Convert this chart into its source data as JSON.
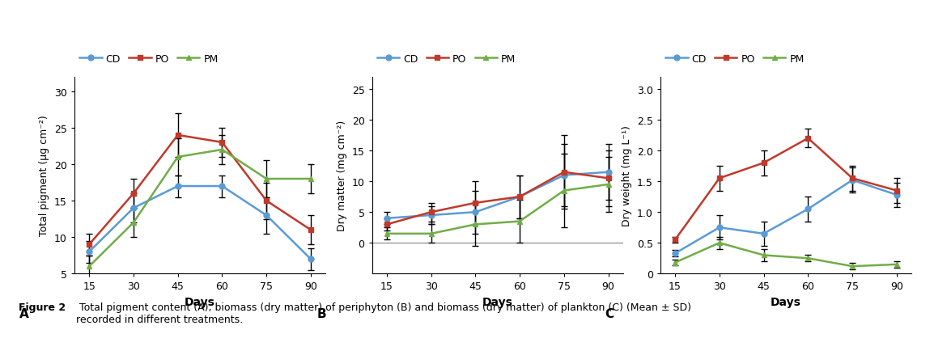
{
  "days": [
    15,
    30,
    45,
    60,
    75,
    90
  ],
  "panel_A": {
    "ylabel": "Total pigment (μg cm⁻²)",
    "ylim": [
      5,
      32
    ],
    "yticks": [
      5,
      10,
      15,
      20,
      25,
      30
    ],
    "CD": {
      "y": [
        8,
        14,
        17,
        17,
        13,
        7
      ],
      "yerr": [
        1.5,
        2.0,
        1.5,
        1.5,
        2.5,
        1.5
      ]
    },
    "PO": {
      "y": [
        9,
        16,
        24,
        23,
        15,
        11
      ],
      "yerr": [
        1.5,
        2.0,
        3.0,
        2.0,
        2.5,
        2.0
      ]
    },
    "PM": {
      "y": [
        6,
        12,
        21,
        22,
        18,
        18
      ],
      "yerr": [
        1.5,
        2.0,
        2.5,
        2.0,
        2.5,
        2.0
      ]
    },
    "label": "A"
  },
  "panel_B": {
    "ylabel": "Dry matter (mg cm⁻²)",
    "ylim": [
      -5,
      27
    ],
    "yticks": [
      0,
      5,
      10,
      15,
      20,
      25
    ],
    "CD": {
      "y": [
        4.0,
        4.5,
        5.0,
        7.5,
        11.0,
        11.5
      ],
      "yerr": [
        1.0,
        1.5,
        3.5,
        3.5,
        5.0,
        4.5
      ]
    },
    "PO": {
      "y": [
        3.0,
        5.0,
        6.5,
        7.5,
        11.5,
        10.5
      ],
      "yerr": [
        1.0,
        1.5,
        3.5,
        3.5,
        6.0,
        4.5
      ]
    },
    "PM": {
      "y": [
        1.5,
        1.5,
        3.0,
        3.5,
        8.5,
        9.5
      ],
      "yerr": [
        1.0,
        1.5,
        3.5,
        3.5,
        6.0,
        4.5
      ]
    },
    "label": "B"
  },
  "panel_C": {
    "ylabel": "Dry weight (mg L⁻¹)",
    "ylim": [
      0,
      3.2
    ],
    "yticks": [
      0,
      0.5,
      1.0,
      1.5,
      2.0,
      2.5,
      3.0
    ],
    "CD": {
      "y": [
        0.33,
        0.75,
        0.65,
        1.05,
        1.52,
        1.28
      ],
      "yerr": [
        0.05,
        0.2,
        0.2,
        0.2,
        0.2,
        0.2
      ]
    },
    "PO": {
      "y": [
        0.55,
        1.55,
        1.8,
        2.2,
        1.55,
        1.35
      ],
      "yerr": [
        0.05,
        0.2,
        0.2,
        0.15,
        0.2,
        0.2
      ]
    },
    "PM": {
      "y": [
        0.18,
        0.5,
        0.3,
        0.25,
        0.12,
        0.15
      ],
      "yerr": [
        0.05,
        0.1,
        0.1,
        0.05,
        0.05,
        0.05
      ]
    },
    "label": "C"
  },
  "colors": {
    "CD": "#5b9bd5",
    "PO": "#c0392b",
    "PM": "#70ad47"
  },
  "markers": {
    "CD": "o",
    "PO": "s",
    "PM": "^"
  },
  "xlabel": "Days",
  "caption_bold": "Figure 2",
  "caption_normal": " Total pigment content (A), biomass (dry matter) of periphyton (B) and biomass (dry matter) of plankton (C) (Mean ± SD)\nrecorded in different treatments."
}
